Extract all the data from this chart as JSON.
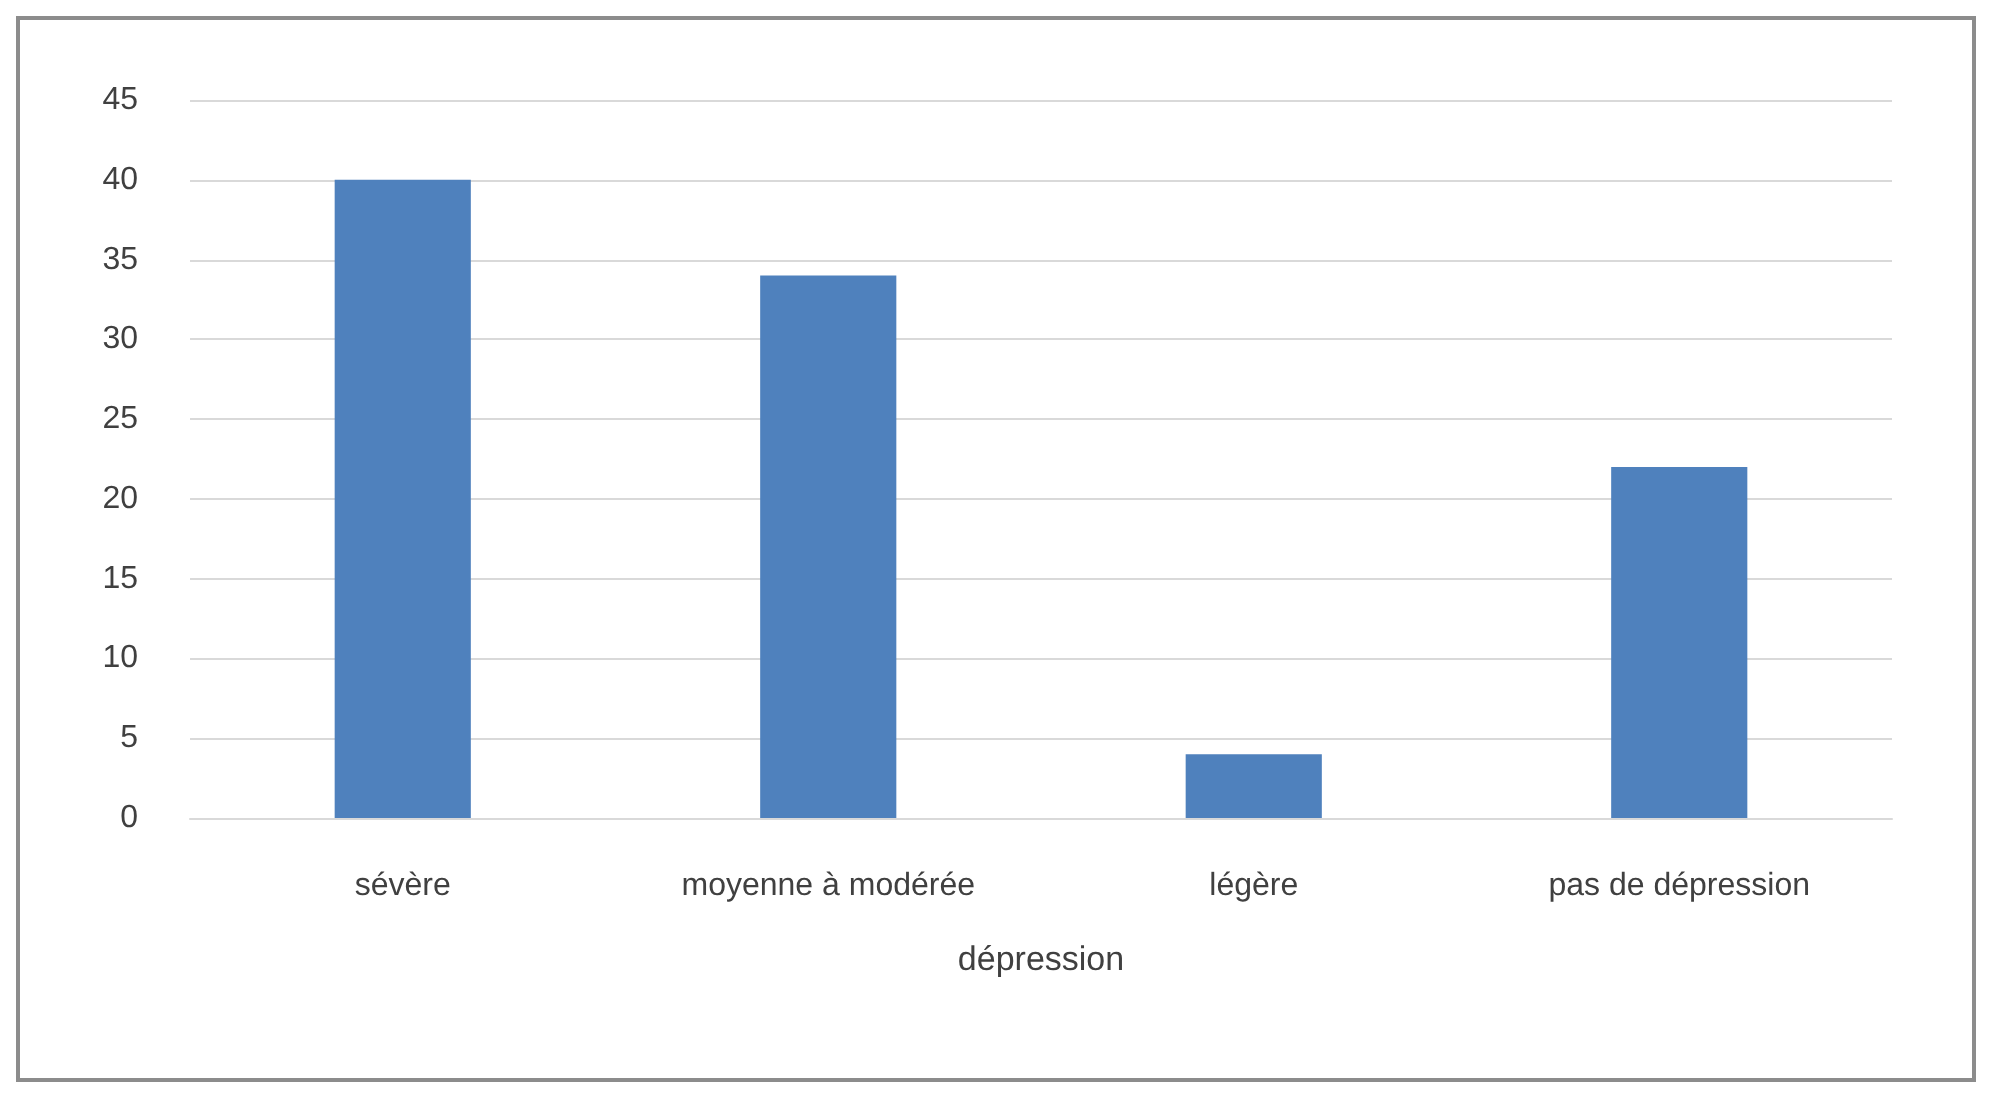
{
  "chart_data": {
    "type": "bar",
    "xlabel": "dépression",
    "categories": [
      "sévère",
      "moyenne à modérée",
      "légère",
      "pas de dépression"
    ],
    "values": [
      40,
      34,
      4,
      22
    ],
    "color": "#4f81bd",
    "ylim": [
      0,
      45
    ],
    "yticks": [
      0,
      5,
      10,
      15,
      20,
      25,
      30,
      35,
      40,
      45
    ],
    "grid": "y"
  }
}
